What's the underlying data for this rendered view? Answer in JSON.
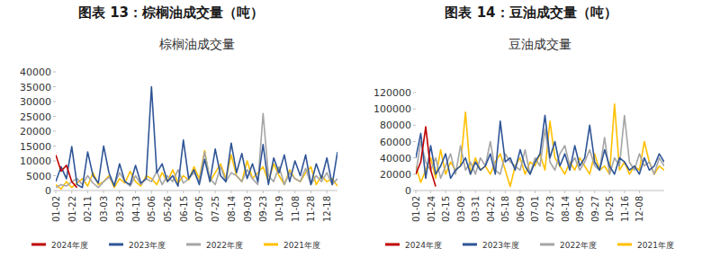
{
  "chart_data": [
    {
      "type": "line",
      "title": "图表 13：棕榈油成交量（吨）",
      "subtitle": "棕榈油成交量",
      "categories": [
        "01-02",
        null,
        null,
        "01-22",
        null,
        null,
        "02-11",
        null,
        null,
        "03-03",
        null,
        null,
        "03-23",
        null,
        null,
        "04-13",
        null,
        null,
        "05-06",
        null,
        null,
        "05-26",
        null,
        null,
        "06-15",
        null,
        null,
        "07-05",
        null,
        null,
        "07-25",
        null,
        null,
        "08-14",
        null,
        null,
        "09-03",
        null,
        null,
        "09-23",
        null,
        null,
        "10-19",
        null,
        null,
        "11-08",
        null,
        null,
        "11-28",
        null,
        null,
        "12-18",
        null,
        null
      ],
      "ylim": [
        0,
        40000
      ],
      "yticks": [
        0,
        5000,
        10000,
        15000,
        20000,
        25000,
        30000,
        35000,
        40000
      ],
      "grid": false,
      "legend": "bottom",
      "series": [
        {
          "name": "2024年度",
          "color": "#c00000",
          "values": [
            12000,
            6500,
            8500,
            3000,
            1000,
            null,
            null,
            null,
            null,
            null,
            null,
            null,
            null,
            null,
            null,
            null,
            null,
            null,
            null,
            null,
            null,
            null,
            null,
            null,
            null,
            null,
            null,
            null,
            null,
            null,
            null,
            null,
            null,
            null,
            null,
            null,
            null,
            null,
            null,
            null,
            null,
            null,
            null,
            null,
            null,
            null,
            null,
            null,
            null,
            null,
            null,
            null,
            null,
            null
          ]
        },
        {
          "name": "2023年度",
          "color": "#2f5597",
          "values": [
            3000,
            8000,
            4000,
            14800,
            2000,
            1000,
            13000,
            5000,
            2500,
            15000,
            6000,
            1500,
            9000,
            3000,
            2000,
            8500,
            2500,
            4000,
            35000,
            6000,
            9000,
            3000,
            5000,
            1500,
            17000,
            4000,
            7000,
            2000,
            10500,
            3000,
            14000,
            5000,
            3000,
            16000,
            6000,
            12500,
            4000,
            9000,
            3000,
            15500,
            2000,
            11000,
            6000,
            12000,
            3000,
            10000,
            5000,
            12000,
            2000,
            9000,
            4000,
            11000,
            2000,
            13000
          ]
        },
        {
          "name": "2022年度",
          "color": "#a5a5a5",
          "values": [
            1000,
            2000,
            1500,
            3000,
            4000,
            2000,
            5000,
            2500,
            1000,
            3000,
            4500,
            2000,
            6000,
            3000,
            1500,
            5000,
            2000,
            4000,
            3000,
            6500,
            2000,
            5000,
            3000,
            7000,
            2500,
            4000,
            6000,
            3000,
            13000,
            4000,
            2000,
            8000,
            3000,
            6000,
            5000,
            3000,
            7000,
            4000,
            2000,
            26000,
            5000,
            3000,
            8000,
            2000,
            6000,
            4000,
            3000,
            7500,
            2000,
            5000,
            3000,
            6000,
            2000,
            4000
          ]
        },
        {
          "name": "2021年度",
          "color": "#ffc000",
          "values": [
            2000,
            500,
            3000,
            1000,
            2500,
            4000,
            1500,
            6000,
            2000,
            3000,
            5000,
            1000,
            4000,
            2500,
            6500,
            3000,
            1500,
            5000,
            4000,
            2000,
            6000,
            3000,
            7000,
            2500,
            5000,
            3500,
            8000,
            4000,
            13500,
            3000,
            6000,
            9000,
            4000,
            12000,
            5000,
            3000,
            10000,
            4000,
            6000,
            8000,
            3000,
            9000,
            5000,
            2000,
            7000,
            4000,
            3000,
            6000,
            8000,
            2000,
            5000,
            3000,
            4000,
            1500
          ]
        }
      ]
    },
    {
      "type": "line",
      "title": "图表 14：豆油成交量（吨）",
      "subtitle": "豆油成交量",
      "categories": [
        "01-02",
        null,
        null,
        "01-24",
        null,
        null,
        "02-15",
        null,
        null,
        "03-09",
        null,
        null,
        "03-31",
        null,
        null,
        "04-22",
        null,
        null,
        "05-18",
        null,
        null,
        "06-09",
        null,
        null,
        "07-01",
        null,
        null,
        "07-23",
        null,
        null,
        "08-14",
        null,
        null,
        "09-05",
        null,
        null,
        "09-27",
        null,
        null,
        "10-25",
        null,
        null,
        "11-16",
        null,
        null,
        "12-08",
        null,
        null,
        null,
        null,
        null
      ],
      "ylim": [
        0,
        120000
      ],
      "yticks": [
        0,
        20000,
        40000,
        60000,
        80000,
        100000,
        120000
      ],
      "grid": false,
      "legend": "bottom",
      "series": [
        {
          "name": "2024年度",
          "color": "#c00000",
          "values": [
            20000,
            35000,
            78000,
            25000,
            5000,
            null,
            null,
            null,
            null,
            null,
            null,
            null,
            null,
            null,
            null,
            null,
            null,
            null,
            null,
            null,
            null,
            null,
            null,
            null,
            null,
            null,
            null,
            null,
            null,
            null,
            null,
            null,
            null,
            null,
            null,
            null,
            null,
            null,
            null,
            null,
            null,
            null,
            null,
            null,
            null,
            null,
            null,
            null,
            null,
            null,
            null
          ]
        },
        {
          "name": "2023年度",
          "color": "#2f5597",
          "values": [
            40000,
            70000,
            15000,
            55000,
            20000,
            30000,
            45000,
            15000,
            25000,
            30000,
            40000,
            20000,
            35000,
            25000,
            30000,
            45000,
            20000,
            85000,
            35000,
            40000,
            25000,
            50000,
            30000,
            20000,
            35000,
            45000,
            92000,
            40000,
            60000,
            30000,
            45000,
            25000,
            55000,
            30000,
            40000,
            80000,
            35000,
            25000,
            50000,
            30000,
            20000,
            40000,
            35000,
            25000,
            30000,
            20000,
            40000,
            25000,
            30000,
            45000,
            35000
          ]
        },
        {
          "name": "2022年度",
          "color": "#a5a5a5",
          "values": [
            20000,
            60000,
            35000,
            25000,
            40000,
            15000,
            30000,
            45000,
            20000,
            55000,
            25000,
            35000,
            20000,
            40000,
            30000,
            60000,
            25000,
            20000,
            45000,
            35000,
            30000,
            25000,
            50000,
            20000,
            40000,
            30000,
            75000,
            35000,
            25000,
            45000,
            55000,
            30000,
            40000,
            25000,
            35000,
            50000,
            30000,
            25000,
            65000,
            20000,
            40000,
            30000,
            92000,
            35000,
            25000,
            45000,
            30000,
            35000,
            20000,
            40000,
            30000
          ]
        },
        {
          "name": "2021年度",
          "color": "#ffc000",
          "values": [
            30000,
            10000,
            25000,
            40000,
            15000,
            50000,
            20000,
            35000,
            25000,
            30000,
            96000,
            20000,
            40000,
            25000,
            30000,
            20000,
            35000,
            45000,
            25000,
            5000,
            30000,
            40000,
            20000,
            35000,
            30000,
            45000,
            25000,
            85000,
            40000,
            30000,
            20000,
            35000,
            25000,
            40000,
            30000,
            20000,
            45000,
            25000,
            30000,
            20000,
            106000,
            25000,
            35000,
            20000,
            30000,
            25000,
            60000,
            35000,
            20000,
            30000,
            25000
          ]
        }
      ]
    }
  ]
}
